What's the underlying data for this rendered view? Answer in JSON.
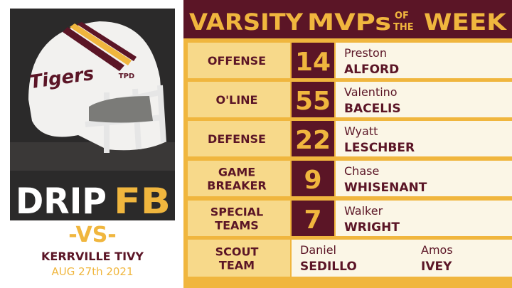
{
  "left": {
    "helmet_logo": "Tigers",
    "helmet_badge": "TPD",
    "brand": [
      "DRIP",
      "FB"
    ],
    "vs": "-VS-",
    "opponent": "KERRVILLE TIVY",
    "date": "AUG 27th 2021"
  },
  "header": {
    "title": [
      "VARSITY",
      "MVPs",
      "OF",
      "THE",
      "WEEK"
    ]
  },
  "rows": [
    {
      "position": [
        "OFFENSE"
      ],
      "number": 14,
      "first": "Preston",
      "last": "ALFORD"
    },
    {
      "position": [
        "O'LINE"
      ],
      "number": 55,
      "first": "Valentino",
      "last": "BACELIS"
    },
    {
      "position": [
        "DEFENSE"
      ],
      "number": 22,
      "first": "Wyatt",
      "last": "LESCHBER"
    },
    {
      "position": [
        "GAME",
        "BREAKER"
      ],
      "number": 9,
      "first": "Chase",
      "last": "WHISENANT"
    },
    {
      "position": [
        "SPECIAL",
        "TEAMS"
      ],
      "number": 7,
      "first": "Walker",
      "last": "WRIGHT"
    }
  ],
  "scout": {
    "position": [
      "SCOUT",
      "TEAM"
    ],
    "players": [
      {
        "first": "Daniel",
        "last": "SEDILLO"
      },
      {
        "first": "Amos",
        "last": "IVEY"
      }
    ]
  }
}
